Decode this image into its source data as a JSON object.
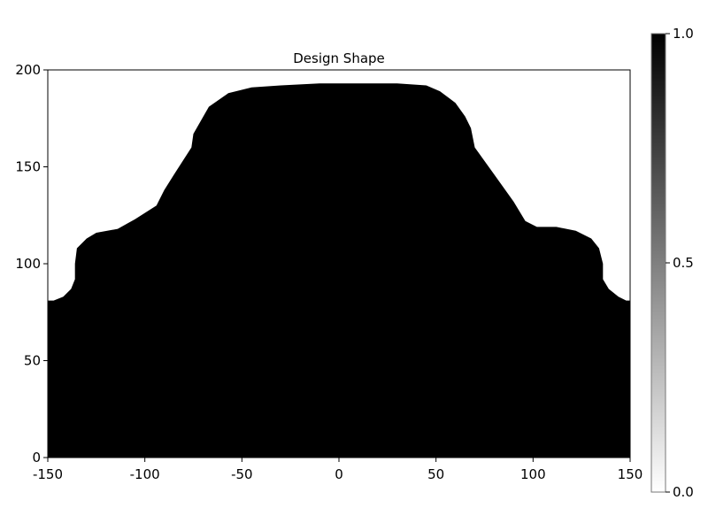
{
  "chart_data": {
    "type": "heatmap",
    "title": "Design Shape",
    "xlabel": "",
    "ylabel": "",
    "xlim": [
      -150,
      150
    ],
    "ylim": [
      0,
      200
    ],
    "x_ticks": [
      -150,
      -100,
      -50,
      0,
      50,
      100,
      150
    ],
    "y_ticks": [
      0,
      50,
      100,
      150,
      200
    ],
    "x_tick_labels": [
      "-150",
      "-100",
      "-50",
      "0",
      "50",
      "100",
      "150"
    ],
    "y_tick_labels": [
      "0",
      "50",
      "100",
      "150",
      "200"
    ],
    "grid": false,
    "colormap": "grays",
    "colorbar": {
      "range": [
        0.0,
        1.0
      ],
      "ticks": [
        0.0,
        0.5,
        1.0
      ],
      "tick_labels": [
        "0.0",
        "0.5",
        "1.0"
      ],
      "low_color": "#ffffff",
      "high_color": "#000000"
    },
    "filled_value": 1.0,
    "empty_value": 0.0,
    "shape_outline": [
      [
        -150,
        81
      ],
      [
        -147,
        81
      ],
      [
        -142,
        83
      ],
      [
        -138,
        87
      ],
      [
        -136,
        92
      ],
      [
        -136,
        100
      ],
      [
        -135,
        108
      ],
      [
        -130,
        113
      ],
      [
        -125,
        116
      ],
      [
        -114,
        118
      ],
      [
        -105,
        123
      ],
      [
        -94,
        130
      ],
      [
        -90,
        138
      ],
      [
        -85,
        146
      ],
      [
        -76,
        160
      ],
      [
        -75,
        167
      ],
      [
        -67,
        181
      ],
      [
        -57,
        188
      ],
      [
        -45,
        191
      ],
      [
        -30,
        192
      ],
      [
        -10,
        193
      ],
      [
        0,
        193
      ],
      [
        10,
        193
      ],
      [
        30,
        193
      ],
      [
        45,
        192
      ],
      [
        52,
        189
      ],
      [
        60,
        183
      ],
      [
        65,
        176
      ],
      [
        68,
        170
      ],
      [
        70,
        160
      ],
      [
        80,
        146
      ],
      [
        90,
        132
      ],
      [
        96,
        122
      ],
      [
        102,
        119
      ],
      [
        112,
        119
      ],
      [
        122,
        117
      ],
      [
        130,
        113
      ],
      [
        134,
        108
      ],
      [
        136,
        100
      ],
      [
        136,
        92
      ],
      [
        139,
        87
      ],
      [
        144,
        83
      ],
      [
        148,
        81
      ],
      [
        150,
        81
      ],
      [
        150,
        0
      ],
      [
        -150,
        0
      ]
    ],
    "colors": {
      "fill": "#000000",
      "axis": "#000000",
      "background": "#ffffff"
    }
  }
}
